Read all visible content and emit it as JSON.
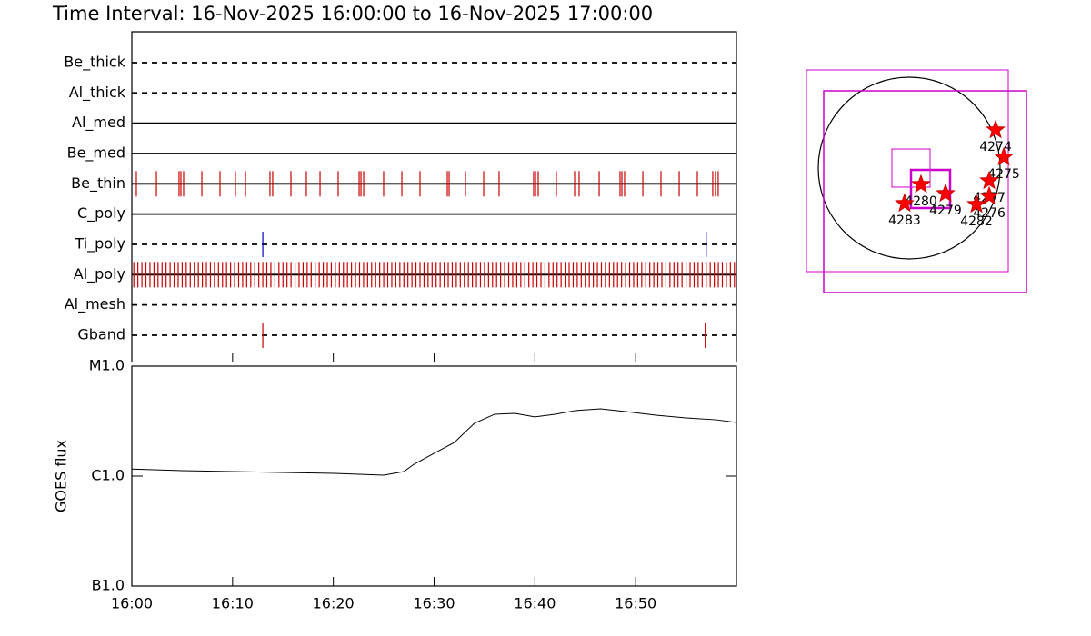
{
  "title": "Time Interval: 16-Nov-2025 16:00:00 to 16-Nov-2025 17:00:00",
  "chart_data": [
    {
      "type": "timeline",
      "xlim": [
        0,
        60
      ],
      "filters": [
        {
          "name": "Be_thick",
          "style": "dashed",
          "times": []
        },
        {
          "name": "Al_thick",
          "style": "dashed",
          "times": []
        },
        {
          "name": "Al_med",
          "style": "solid",
          "times": []
        },
        {
          "name": "Be_med",
          "style": "solid",
          "times": []
        },
        {
          "name": "Be_thin",
          "style": "solid",
          "color": "#cc0000",
          "times": [
            0.45,
            2.44,
            4.69,
            4.87,
            5.14,
            6.95,
            8.75,
            10.28,
            11.28,
            13.71,
            13.98,
            15.79,
            17.32,
            18.68,
            20.48,
            22.56,
            22.74,
            23.01,
            24.99,
            26.8,
            28.6,
            31.31,
            31.49,
            33.11,
            34.92,
            36.45,
            39.88,
            40.06,
            40.33,
            42.13,
            43.94,
            44.39,
            46.38,
            48.45,
            48.63,
            48.9,
            50.71,
            52.51,
            54.32,
            56.12,
            57.65,
            57.92,
            58.19
          ]
        },
        {
          "name": "C_poly",
          "style": "solid",
          "times": []
        },
        {
          "name": "Ti_poly",
          "style": "dashed",
          "color": "#0000cc",
          "times": [
            13.0,
            57.0
          ]
        },
        {
          "name": "Al_poly",
          "style": "solid",
          "color": "#cc0000",
          "times": [
            0.2,
            0.6,
            1.0,
            1.4,
            1.8,
            2.2,
            2.6,
            3.0,
            3.4,
            3.8,
            4.2,
            4.6,
            5.0,
            5.4,
            5.8,
            6.2,
            6.6,
            7.0,
            7.4,
            7.8,
            8.2,
            8.6,
            9.0,
            9.4,
            9.8,
            10.2,
            10.6,
            11.0,
            11.4,
            11.8,
            12.2,
            12.6,
            13.0,
            13.4,
            13.8,
            14.2,
            14.6,
            15.0,
            15.4,
            15.8,
            16.2,
            16.6,
            17.0,
            17.4,
            17.8,
            18.2,
            18.6,
            19.0,
            19.4,
            19.8,
            20.2,
            20.6,
            21.0,
            21.4,
            21.8,
            22.2,
            22.6,
            23.0,
            23.4,
            23.8,
            24.2,
            24.6,
            25.0,
            25.4,
            25.8,
            26.2,
            26.6,
            27.0,
            27.4,
            27.8,
            28.2,
            28.6,
            29.0,
            29.4,
            29.8,
            30.2,
            30.6,
            31.0,
            31.4,
            31.8,
            32.2,
            32.6,
            33.0,
            33.4,
            33.8,
            34.2,
            34.6,
            35.0,
            35.4,
            35.8,
            36.2,
            36.6,
            37.0,
            37.4,
            37.8,
            38.2,
            38.6,
            39.0,
            39.4,
            39.8,
            40.2,
            40.6,
            41.0,
            41.4,
            41.8,
            42.2,
            42.6,
            43.0,
            43.4,
            43.8,
            44.2,
            44.6,
            45.0,
            45.4,
            45.8,
            46.2,
            46.6,
            47.0,
            47.4,
            47.8,
            48.2,
            48.6,
            49.0,
            49.4,
            49.8,
            50.2,
            50.6,
            51.0,
            51.4,
            51.8,
            52.2,
            52.6,
            53.0,
            53.4,
            53.8,
            54.2,
            54.6,
            55.0,
            55.4,
            55.8,
            56.2,
            56.6,
            57.0,
            57.4,
            57.8,
            58.2,
            58.6,
            59.0,
            59.4,
            59.8
          ]
        },
        {
          "name": "Al_mesh",
          "style": "dashed",
          "times": []
        },
        {
          "name": "Gband",
          "style": "dashed",
          "color": "#cc0000",
          "times": [
            13.0,
            56.9
          ]
        }
      ]
    },
    {
      "type": "line",
      "ylabel": "GOES flux",
      "log": true,
      "color": "#000000",
      "xlim": [
        0,
        60
      ],
      "xticks": [
        {
          "value": 0,
          "label": "16:00"
        },
        {
          "value": 10,
          "label": "16:10"
        },
        {
          "value": 20,
          "label": "16:20"
        },
        {
          "value": 30,
          "label": "16:30"
        },
        {
          "value": 40,
          "label": "16:40"
        },
        {
          "value": 50,
          "label": "16:50"
        }
      ],
      "ylim": [
        1e-07,
        1e-05
      ],
      "yticks": [
        {
          "value": 1e-07,
          "label": "B1.0"
        },
        {
          "value": 1e-06,
          "label": "C1.0"
        },
        {
          "value": 1e-05,
          "label": "M1.0"
        }
      ],
      "x": [
        0,
        5,
        10,
        15,
        20,
        25,
        27,
        28,
        30,
        32,
        34,
        36,
        38,
        40,
        42,
        44,
        46.5,
        49,
        52,
        55,
        58,
        60
      ],
      "values": [
        1.16e-06,
        1.12e-06,
        1.1e-06,
        1.08e-06,
        1.06e-06,
        1.02e-06,
        1.1e-06,
        1.28e-06,
        1.61e-06,
        2.02e-06,
        3.02e-06,
        3.65e-06,
        3.72e-06,
        3.45e-06,
        3.65e-06,
        3.94e-06,
        4.09e-06,
        3.86e-06,
        3.58e-06,
        3.38e-06,
        3.25e-06,
        3.07e-06
      ]
    }
  ],
  "map": {
    "regions": [
      {
        "label": "4274",
        "x": 922,
        "y": 407
      },
      {
        "label": "4275",
        "x": 1009,
        "y": 116
      },
      {
        "label": "4277",
        "x": 854,
        "y": -136
      },
      {
        "label": "4276",
        "x": 854,
        "y": -301
      },
      {
        "label": "4282",
        "x": 718,
        "y": -388
      },
      {
        "label": "4279",
        "x": 388,
        "y": -272
      },
      {
        "label": "4280",
        "x": 126,
        "y": -175
      },
      {
        "label": "4283",
        "x": -49,
        "y": -378
      }
    ]
  }
}
